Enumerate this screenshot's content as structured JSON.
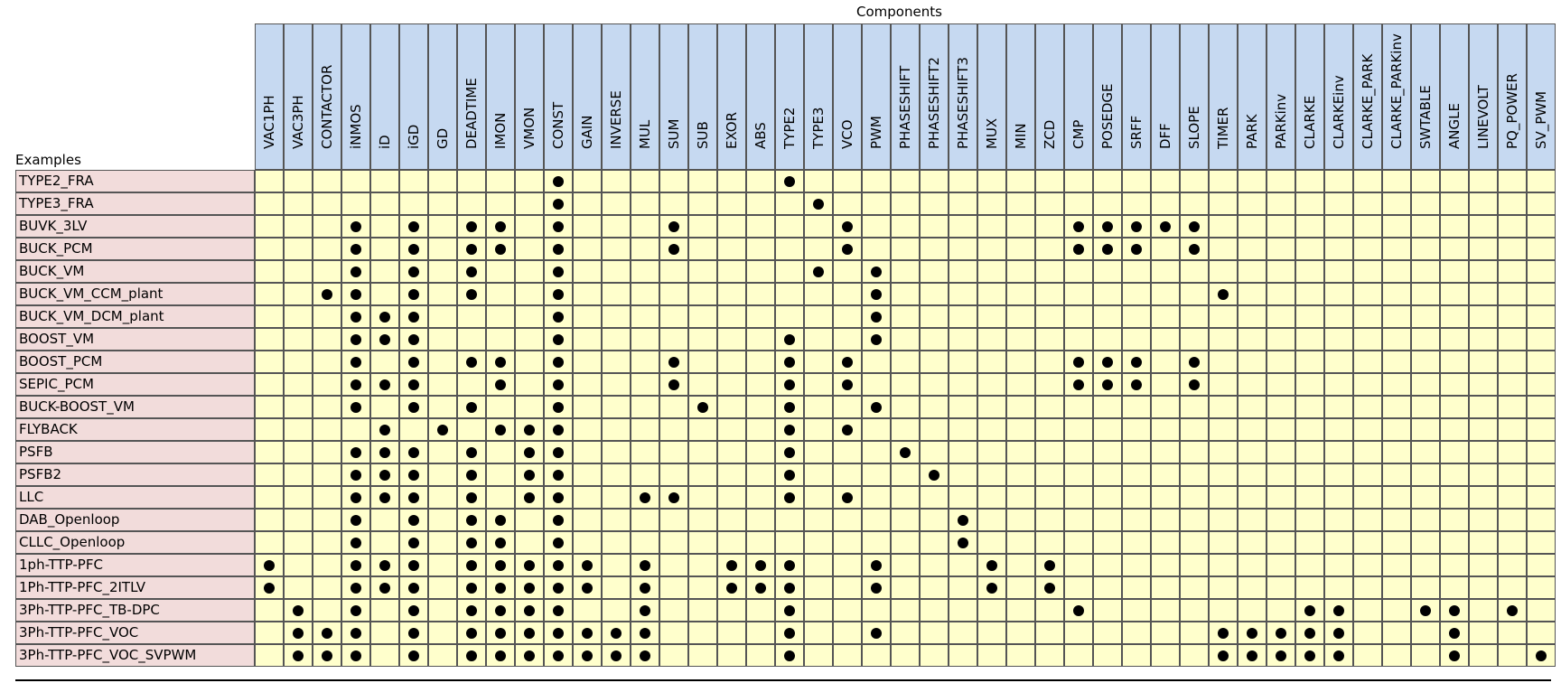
{
  "title": "Components",
  "row_header": "Examples",
  "columns": [
    "VAC1PH",
    "VAC3PH",
    "CONTACTOR",
    "iNMOS",
    "iD",
    "iGD",
    "GD",
    "DEADTIME",
    "IMON",
    "VMON",
    "CONST",
    "GAIN",
    "INVERSE",
    "MUL",
    "SUM",
    "SUB",
    "EXOR",
    "ABS",
    "TYPE2",
    "TYPE3",
    "VCO",
    "PWM",
    "PHASESHIFT",
    "PHASESHIFT2",
    "PHASESHIFT3",
    "MUX",
    "MIN",
    "ZCD",
    "CMP",
    "POSEDGE",
    "SRFF",
    "DFF",
    "SLOPE",
    "TIMER",
    "PARK",
    "PARKinv",
    "CLARKE",
    "CLARKEinv",
    "CLARKE_PARK",
    "CLARKE_PARKinv",
    "SWTABLE",
    "ANGLE",
    "LINEVOLT",
    "PQ_POWER",
    "SV_PWM"
  ],
  "rows": [
    {
      "name": "TYPE2_FRA",
      "marks": [
        "CONST",
        "TYPE2"
      ]
    },
    {
      "name": "TYPE3_FRA",
      "marks": [
        "CONST",
        "TYPE3"
      ]
    },
    {
      "name": "BUVK_3LV",
      "marks": [
        "iNMOS",
        "iGD",
        "DEADTIME",
        "IMON",
        "CONST",
        "SUM",
        "VCO",
        "CMP",
        "POSEDGE",
        "SRFF",
        "DFF",
        "SLOPE"
      ]
    },
    {
      "name": "BUCK_PCM",
      "marks": [
        "iNMOS",
        "iGD",
        "DEADTIME",
        "IMON",
        "CONST",
        "SUM",
        "VCO",
        "CMP",
        "POSEDGE",
        "SRFF",
        "SLOPE"
      ]
    },
    {
      "name": "BUCK_VM",
      "marks": [
        "iNMOS",
        "iGD",
        "DEADTIME",
        "CONST",
        "TYPE3",
        "PWM"
      ]
    },
    {
      "name": "BUCK_VM_CCM_plant",
      "marks": [
        "CONTACTOR",
        "iNMOS",
        "iGD",
        "DEADTIME",
        "CONST",
        "PWM",
        "TIMER"
      ]
    },
    {
      "name": "BUCK_VM_DCM_plant",
      "marks": [
        "iNMOS",
        "iD",
        "iGD",
        "CONST",
        "PWM"
      ]
    },
    {
      "name": "BOOST_VM",
      "marks": [
        "iNMOS",
        "iD",
        "iGD",
        "CONST",
        "TYPE2",
        "PWM"
      ]
    },
    {
      "name": "BOOST_PCM",
      "marks": [
        "iNMOS",
        "iGD",
        "DEADTIME",
        "IMON",
        "CONST",
        "SUM",
        "TYPE2",
        "VCO",
        "CMP",
        "POSEDGE",
        "SRFF",
        "SLOPE"
      ]
    },
    {
      "name": "SEPIC_PCM",
      "marks": [
        "iNMOS",
        "iD",
        "iGD",
        "IMON",
        "CONST",
        "SUM",
        "TYPE2",
        "VCO",
        "CMP",
        "POSEDGE",
        "SRFF",
        "SLOPE"
      ]
    },
    {
      "name": "BUCK-BOOST_VM",
      "marks": [
        "iNMOS",
        "iGD",
        "DEADTIME",
        "CONST",
        "SUB",
        "TYPE2",
        "PWM"
      ]
    },
    {
      "name": "FLYBACK",
      "marks": [
        "iD",
        "GD",
        "IMON",
        "VMON",
        "CONST",
        "TYPE2",
        "VCO"
      ]
    },
    {
      "name": "PSFB",
      "marks": [
        "iNMOS",
        "iD",
        "iGD",
        "DEADTIME",
        "VMON",
        "CONST",
        "TYPE2",
        "PHASESHIFT"
      ]
    },
    {
      "name": "PSFB2",
      "marks": [
        "iNMOS",
        "iD",
        "iGD",
        "DEADTIME",
        "VMON",
        "CONST",
        "TYPE2",
        "PHASESHIFT2"
      ]
    },
    {
      "name": "LLC",
      "marks": [
        "iNMOS",
        "iD",
        "iGD",
        "DEADTIME",
        "VMON",
        "CONST",
        "MUL",
        "SUM",
        "TYPE2",
        "VCO"
      ]
    },
    {
      "name": "DAB_Openloop",
      "marks": [
        "iNMOS",
        "iGD",
        "DEADTIME",
        "IMON",
        "CONST",
        "PHASESHIFT3"
      ]
    },
    {
      "name": "CLLC_Openloop",
      "marks": [
        "iNMOS",
        "iGD",
        "DEADTIME",
        "IMON",
        "CONST",
        "PHASESHIFT3"
      ]
    },
    {
      "name": "1ph-TTP-PFC",
      "marks": [
        "VAC1PH",
        "iNMOS",
        "iD",
        "iGD",
        "DEADTIME",
        "IMON",
        "VMON",
        "CONST",
        "GAIN",
        "MUL",
        "EXOR",
        "ABS",
        "TYPE2",
        "PWM",
        "MUX",
        "ZCD"
      ]
    },
    {
      "name": "1Ph-TTP-PFC_2ITLV",
      "marks": [
        "VAC1PH",
        "iNMOS",
        "iD",
        "iGD",
        "DEADTIME",
        "IMON",
        "VMON",
        "CONST",
        "GAIN",
        "MUL",
        "EXOR",
        "ABS",
        "TYPE2",
        "PWM",
        "MUX",
        "ZCD"
      ]
    },
    {
      "name": "3Ph-TTP-PFC_TB-DPC",
      "marks": [
        "VAC3PH",
        "iNMOS",
        "iGD",
        "DEADTIME",
        "IMON",
        "VMON",
        "CONST",
        "MUL",
        "TYPE2",
        "CMP",
        "CLARKE",
        "CLARKEinv",
        "SWTABLE",
        "ANGLE",
        "PQ_POWER"
      ]
    },
    {
      "name": "3Ph-TTP-PFC_VOC",
      "marks": [
        "VAC3PH",
        "CONTACTOR",
        "iNMOS",
        "iGD",
        "DEADTIME",
        "IMON",
        "VMON",
        "CONST",
        "GAIN",
        "INVERSE",
        "MUL",
        "TYPE2",
        "PWM",
        "TIMER",
        "PARK",
        "PARKinv",
        "CLARKE",
        "CLARKEinv",
        "ANGLE"
      ]
    },
    {
      "name": "3Ph-TTP-PFC_VOC_SVPWM",
      "marks": [
        "VAC3PH",
        "CONTACTOR",
        "iNMOS",
        "iGD",
        "DEADTIME",
        "IMON",
        "VMON",
        "CONST",
        "GAIN",
        "INVERSE",
        "MUL",
        "TYPE2",
        "TIMER",
        "PARK",
        "PARKinv",
        "CLARKE",
        "CLARKEinv",
        "ANGLE",
        "SV_PWM"
      ]
    }
  ]
}
